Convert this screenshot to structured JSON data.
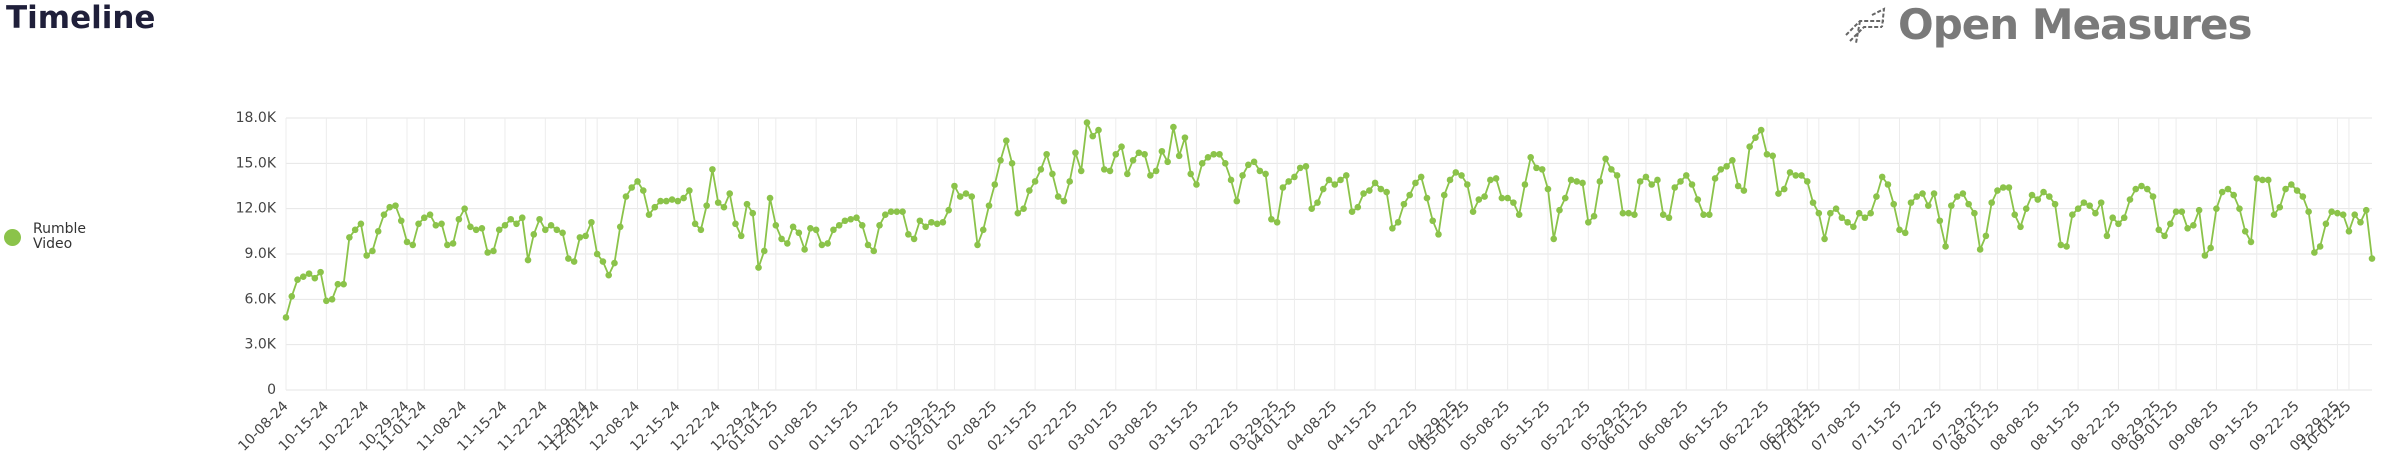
{
  "header": {
    "title": "Timeline",
    "logo": "Open Measures"
  },
  "chart_data": {
    "type": "line",
    "legend": "left",
    "grid": true,
    "ylim": [
      0,
      18000
    ],
    "yticks": [
      0,
      {
        "value": 3000,
        "label": "3.0K"
      },
      {
        "value": 6000,
        "label": "6.0K"
      },
      {
        "value": 9000,
        "label": "9.0K"
      },
      {
        "value": 12000,
        "label": "12.0K"
      },
      {
        "value": 15000,
        "label": "15.0K"
      },
      {
        "value": 18000,
        "label": "18.0K"
      }
    ],
    "xlim": [
      "10-08-24",
      "10-05-25"
    ],
    "xticks": [
      "10-08-24",
      "10-15-24",
      "10-22-24",
      "10-29-24",
      "11-01-24",
      "11-08-24",
      "11-15-24",
      "11-22-24",
      "11-29-24",
      "12-01-24",
      "12-08-24",
      "12-15-24",
      "12-22-24",
      "12-29-24",
      "01-01-25",
      "01-08-25",
      "01-15-25",
      "01-22-25",
      "01-29-25",
      "02-01-25",
      "02-08-25",
      "02-15-25",
      "02-22-25",
      "03-01-25",
      "03-08-25",
      "03-15-25",
      "03-22-25",
      "03-29-25",
      "04-01-25",
      "04-08-25",
      "04-15-25",
      "04-22-25",
      "04-29-25",
      "05-01-25",
      "05-08-25",
      "05-15-25",
      "05-22-25",
      "05-29-25",
      "06-01-25",
      "06-08-25",
      "06-15-25",
      "06-22-25",
      "06-29-25",
      "07-01-25",
      "07-08-25",
      "07-15-25",
      "07-22-25",
      "07-29-25",
      "08-01-25",
      "08-08-25",
      "08-15-25",
      "08-22-25",
      "08-29-25",
      "09-01-25",
      "09-08-25",
      "09-15-25",
      "09-22-25",
      "09-29-25",
      "10-01-25"
    ],
    "x": [
      "10-08-24",
      "10-09-24",
      "10-10-24",
      "10-11-24",
      "10-12-24",
      "10-13-24",
      "10-14-24",
      "10-15-24",
      "10-16-24",
      "10-17-24",
      "10-18-24",
      "10-19-24",
      "10-20-24",
      "10-21-24",
      "10-22-24",
      "10-23-24",
      "10-24-24",
      "10-25-24",
      "10-26-24",
      "10-27-24",
      "10-28-24",
      "10-29-24",
      "10-30-24",
      "10-31-24",
      "11-01-24",
      "11-02-24",
      "11-03-24",
      "11-04-24",
      "11-05-24",
      "11-06-24",
      "11-07-24",
      "11-08-24",
      "11-09-24",
      "11-10-24",
      "11-11-24",
      "11-12-24",
      "11-13-24",
      "11-14-24",
      "11-15-24",
      "11-16-24",
      "11-17-24",
      "11-18-24",
      "11-19-24",
      "11-20-24",
      "11-21-24",
      "11-22-24",
      "11-23-24",
      "11-24-24",
      "11-25-24",
      "11-26-24",
      "11-27-24",
      "11-28-24",
      "11-29-24",
      "11-30-24",
      "12-01-24",
      "12-02-24",
      "12-03-24",
      "12-04-24",
      "12-05-24",
      "12-06-24",
      "12-07-24",
      "12-08-24",
      "12-09-24",
      "12-10-24",
      "12-11-24",
      "12-12-24",
      "12-13-24",
      "12-14-24",
      "12-15-24",
      "12-16-24",
      "12-17-24",
      "12-18-24",
      "12-19-24",
      "12-20-24",
      "12-21-24",
      "12-22-24",
      "12-23-24",
      "12-24-24",
      "12-25-24",
      "12-26-24",
      "12-27-24",
      "12-28-24",
      "12-29-24",
      "12-30-24",
      "12-31-24",
      "01-01-25",
      "01-02-25",
      "01-03-25",
      "01-04-25",
      "01-05-25",
      "01-06-25",
      "01-07-25",
      "01-08-25",
      "01-09-25",
      "01-10-25",
      "01-11-25",
      "01-12-25",
      "01-13-25",
      "01-14-25",
      "01-15-25",
      "01-16-25",
      "01-17-25",
      "01-18-25",
      "01-19-25",
      "01-20-25",
      "01-21-25",
      "01-22-25",
      "01-23-25",
      "01-24-25",
      "01-25-25",
      "01-26-25",
      "01-27-25",
      "01-28-25",
      "01-29-25",
      "01-30-25",
      "01-31-25",
      "02-01-25",
      "02-02-25",
      "02-03-25",
      "02-04-25",
      "02-05-25",
      "02-06-25",
      "02-07-25",
      "02-08-25",
      "02-09-25",
      "02-10-25",
      "02-11-25",
      "02-12-25",
      "02-13-25",
      "02-14-25",
      "02-15-25",
      "02-16-25",
      "02-17-25",
      "02-18-25",
      "02-19-25",
      "02-20-25",
      "02-21-25",
      "02-22-25",
      "02-23-25",
      "02-24-25",
      "02-25-25",
      "02-26-25",
      "02-27-25",
      "02-28-25",
      "03-01-25",
      "03-02-25",
      "03-03-25",
      "03-04-25",
      "03-05-25",
      "03-06-25",
      "03-07-25",
      "03-08-25",
      "03-09-25",
      "03-10-25",
      "03-11-25",
      "03-12-25",
      "03-13-25",
      "03-14-25",
      "03-15-25",
      "03-16-25",
      "03-17-25",
      "03-18-25",
      "03-19-25",
      "03-20-25",
      "03-21-25",
      "03-22-25",
      "03-23-25",
      "03-24-25",
      "03-25-25",
      "03-26-25",
      "03-27-25",
      "03-28-25",
      "03-29-25",
      "03-30-25",
      "03-31-25",
      "04-01-25",
      "04-02-25",
      "04-03-25",
      "04-04-25",
      "04-05-25",
      "04-06-25",
      "04-07-25",
      "04-08-25",
      "04-09-25",
      "04-10-25",
      "04-11-25",
      "04-12-25",
      "04-13-25",
      "04-14-25",
      "04-15-25",
      "04-16-25",
      "04-17-25",
      "04-18-25",
      "04-19-25",
      "04-20-25",
      "04-21-25",
      "04-22-25",
      "04-23-25",
      "04-24-25",
      "04-25-25",
      "04-26-25",
      "04-27-25",
      "04-28-25",
      "04-29-25",
      "04-30-25",
      "05-01-25",
      "05-02-25",
      "05-03-25",
      "05-04-25",
      "05-05-25",
      "05-06-25",
      "05-07-25",
      "05-08-25",
      "05-09-25",
      "05-10-25",
      "05-11-25",
      "05-12-25",
      "05-13-25",
      "05-14-25",
      "05-15-25",
      "05-16-25",
      "05-17-25",
      "05-18-25",
      "05-19-25",
      "05-20-25",
      "05-21-25",
      "05-22-25",
      "05-23-25",
      "05-24-25",
      "05-25-25",
      "05-26-25",
      "05-27-25",
      "05-28-25",
      "05-29-25",
      "05-30-25",
      "05-31-25",
      "06-01-25",
      "06-02-25",
      "06-03-25",
      "06-04-25",
      "06-05-25",
      "06-06-25",
      "06-07-25",
      "06-08-25",
      "06-09-25",
      "06-10-25",
      "06-11-25",
      "06-12-25",
      "06-13-25",
      "06-14-25",
      "06-15-25",
      "06-16-25",
      "06-17-25",
      "06-18-25",
      "06-19-25",
      "06-20-25",
      "06-21-25",
      "06-22-25",
      "06-23-25",
      "06-24-25",
      "06-25-25",
      "06-26-25",
      "06-27-25",
      "06-28-25",
      "06-29-25",
      "06-30-25",
      "07-01-25",
      "07-02-25",
      "07-03-25",
      "07-04-25",
      "07-05-25",
      "07-06-25",
      "07-07-25",
      "07-08-25",
      "07-09-25",
      "07-10-25",
      "07-11-25",
      "07-12-25",
      "07-13-25",
      "07-14-25",
      "07-15-25",
      "07-16-25",
      "07-17-25",
      "07-18-25",
      "07-19-25",
      "07-20-25",
      "07-21-25",
      "07-22-25",
      "07-23-25",
      "07-24-25",
      "07-25-25",
      "07-26-25",
      "07-27-25",
      "07-28-25",
      "07-29-25",
      "07-30-25",
      "07-31-25",
      "08-01-25",
      "08-02-25",
      "08-03-25",
      "08-04-25",
      "08-05-25",
      "08-06-25",
      "08-07-25",
      "08-08-25",
      "08-09-25",
      "08-10-25",
      "08-11-25",
      "08-12-25",
      "08-13-25",
      "08-14-25",
      "08-15-25",
      "08-16-25",
      "08-17-25",
      "08-18-25",
      "08-19-25",
      "08-20-25",
      "08-21-25",
      "08-22-25",
      "08-23-25",
      "08-24-25",
      "08-25-25",
      "08-26-25",
      "08-27-25",
      "08-28-25",
      "08-29-25",
      "08-30-25",
      "08-31-25",
      "09-01-25",
      "09-02-25",
      "09-03-25",
      "09-04-25",
      "09-05-25",
      "09-06-25",
      "09-07-25",
      "09-08-25",
      "09-09-25",
      "09-10-25",
      "09-11-25",
      "09-12-25",
      "09-13-25",
      "09-14-25",
      "09-15-25",
      "09-16-25",
      "09-17-25",
      "09-18-25",
      "09-19-25",
      "09-20-25",
      "09-21-25",
      "09-22-25",
      "09-23-25",
      "09-24-25",
      "09-25-25",
      "09-26-25",
      "09-27-25",
      "09-28-25",
      "09-29-25",
      "09-30-25",
      "10-01-25",
      "10-02-25",
      "10-03-25",
      "10-04-25",
      "10-05-25"
    ],
    "series": [
      {
        "name": "Rumble Video",
        "color": "#8bc34a",
        "values": [
          4800,
          6200,
          7300,
          7500,
          7700,
          7400,
          7800,
          5900,
          6000,
          7000,
          7000,
          10100,
          10600,
          11000,
          8900,
          9200,
          10500,
          11600,
          12100,
          12200,
          11200,
          9800,
          9600,
          11000,
          11400,
          11600,
          10900,
          11000,
          9600,
          9700,
          11300,
          12000,
          10800,
          10600,
          10700,
          9100,
          9200,
          10600,
          10900,
          11300,
          11000,
          11400,
          8600,
          10300,
          11300,
          10600,
          10900,
          10600,
          10400,
          8700,
          8500,
          10100,
          10200,
          11100,
          9000,
          8500,
          7600,
          8400,
          10800,
          12800,
          13400,
          13800,
          13200,
          11600,
          12100,
          12500,
          12500,
          12600,
          12500,
          12700,
          13200,
          11000,
          10600,
          12200,
          14600,
          12400,
          12100,
          13000,
          11000,
          10200,
          12300,
          11700,
          8100,
          9200,
          12700,
          10900,
          10000,
          9700,
          10800,
          10400,
          9300,
          10700,
          10600,
          9600,
          9700,
          10600,
          10900,
          11200,
          11300,
          11400,
          10900,
          9600,
          9200,
          10900,
          11600,
          11800,
          11800,
          11800,
          10300,
          10000,
          11200,
          10800,
          11100,
          11000,
          11100,
          11900,
          13500,
          12800,
          13000,
          12800,
          9600,
          10600,
          12200,
          13600,
          15200,
          16500,
          15000,
          11700,
          12000,
          13200,
          13800,
          14600,
          15600,
          14300,
          12800,
          12500,
          13800,
          15700,
          14500,
          17700,
          16800,
          17200,
          14600,
          14500,
          15600,
          16100,
          14300,
          15200,
          15700,
          15600,
          14200,
          14500,
          15800,
          15100,
          17400,
          15500,
          16700,
          14300,
          13600,
          15000,
          15400,
          15600,
          15600,
          15000,
          13900,
          12500,
          14200,
          14900,
          15100,
          14500,
          14300,
          11300,
          11100,
          13400,
          13800,
          14100,
          14700,
          14800,
          12000,
          12400,
          13300,
          13900,
          13600,
          13900,
          14200,
          11800,
          12100,
          13000,
          13200,
          13700,
          13300,
          13100,
          10700,
          11100,
          12300,
          12900,
          13700,
          14100,
          12700,
          11200,
          10300,
          12900,
          13900,
          14400,
          14200,
          13600,
          11800,
          12600,
          12800,
          13900,
          14000,
          12700,
          12700,
          12400,
          11600,
          13600,
          15400,
          14700,
          14600,
          13300,
          10000,
          11900,
          12700,
          13900,
          13800,
          13700,
          11100,
          11500,
          13800,
          15300,
          14600,
          14200,
          11700,
          11700,
          11600,
          13800,
          14100,
          13600,
          13900,
          11600,
          11400,
          13400,
          13800,
          14200,
          13600,
          12600,
          11600,
          11600,
          14000,
          14600,
          14800,
          15200,
          13500,
          13200,
          16100,
          16700,
          17200,
          15600,
          15500,
          13000,
          13300,
          14400,
          14200,
          14200,
          13800,
          12400,
          11700,
          10000,
          11700,
          12000,
          11400,
          11100,
          10800,
          11700,
          11400,
          11700,
          12800,
          14100,
          13600,
          12300,
          10600,
          10400,
          12400,
          12800,
          13000,
          12200,
          13000,
          11200,
          9500,
          12200,
          12800,
          13000,
          12300,
          11700,
          9300,
          10200,
          12400,
          13200,
          13400,
          13400,
          11600,
          10800,
          12000,
          12900,
          12600,
          13100,
          12800,
          12300,
          9600,
          9500,
          11600,
          12000,
          12400,
          12200,
          11700,
          12400,
          10200,
          11400,
          11000,
          11400,
          12600,
          13300,
          13500,
          13300,
          12800,
          10600,
          10200,
          11000,
          11800,
          11800,
          10700,
          10900,
          11900,
          8900,
          9400,
          12000,
          13100,
          13300,
          12900,
          12000,
          10500,
          9800,
          14000,
          13900,
          13900,
          11600,
          12100,
          13300,
          13600,
          13200,
          12800,
          11800,
          9100,
          9500,
          11000,
          11800,
          11700,
          11600,
          10500,
          11600,
          11100,
          11900,
          8700
        ]
      }
    ]
  }
}
